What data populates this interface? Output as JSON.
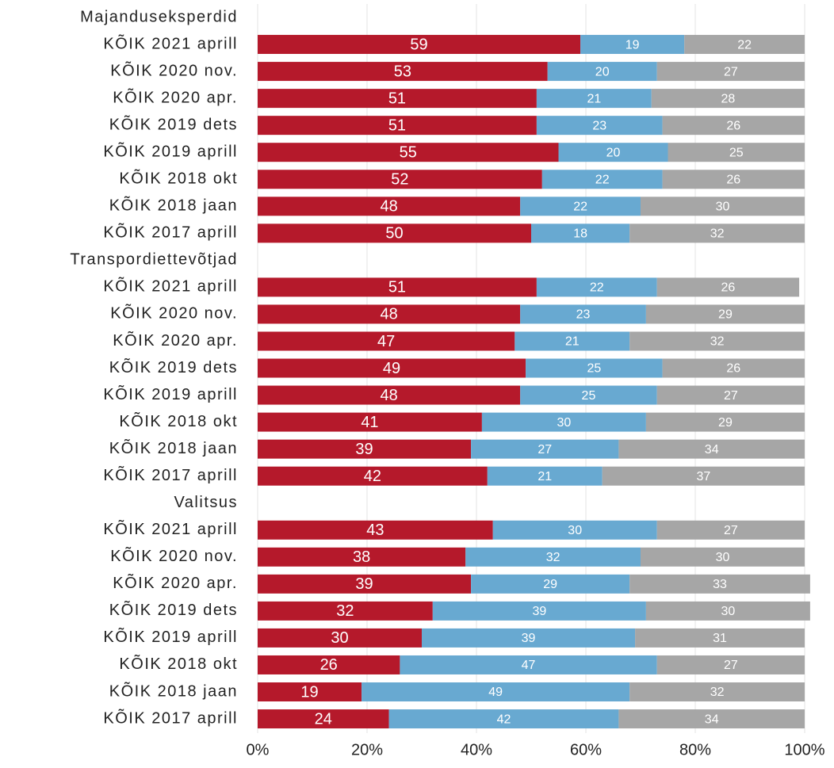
{
  "chart_data": {
    "type": "stacked-barh",
    "categories": [
      "Majanduseksperdid",
      "KÕIK 2021 aprill",
      "KÕIK 2020 nov.",
      "KÕIK 2020 apr.",
      "KÕIK 2019 dets",
      "KÕIK 2019 aprill",
      "KÕIK 2018 okt",
      "KÕIK 2018 jaan",
      "KÕIK 2017 aprill",
      "Transpordiettevõtjad",
      "KÕIK 2021 aprill",
      "KÕIK 2020 nov.",
      "KÕIK 2020 apr.",
      "KÕIK 2019 dets",
      "KÕIK 2019 aprill",
      "KÕIK 2018 okt",
      "KÕIK 2018 jaan",
      "KÕIK 2017 aprill",
      "Valitsus",
      "KÕIK 2021 aprill",
      "KÕIK 2020 nov.",
      "KÕIK 2020 apr.",
      "KÕIK 2019 dets",
      "KÕIK 2019 aprill",
      "KÕIK 2018 okt",
      "KÕIK 2018 jaan",
      "KÕIK 2017 aprill"
    ],
    "series": [
      {
        "color": "#b5192b",
        "values": [
          null,
          59,
          53,
          51,
          51,
          55,
          52,
          48,
          50,
          null,
          51,
          48,
          47,
          49,
          48,
          41,
          39,
          42,
          null,
          43,
          38,
          39,
          32,
          30,
          26,
          19,
          24
        ]
      },
      {
        "color": "#68a9d1",
        "values": [
          null,
          19,
          20,
          21,
          23,
          20,
          22,
          22,
          18,
          null,
          22,
          23,
          21,
          25,
          25,
          30,
          27,
          21,
          null,
          30,
          32,
          29,
          39,
          39,
          47,
          49,
          42
        ]
      },
      {
        "color": "#a6a6a6",
        "values": [
          null,
          22,
          27,
          28,
          26,
          25,
          26,
          30,
          32,
          null,
          26,
          29,
          32,
          26,
          27,
          29,
          34,
          37,
          null,
          27,
          30,
          33,
          30,
          31,
          27,
          32,
          34
        ]
      }
    ],
    "xlim": [
      0,
      100
    ],
    "xticks": [
      {
        "value": 0,
        "label": "0%"
      },
      {
        "value": 20,
        "label": "20%"
      },
      {
        "value": 40,
        "label": "40%"
      },
      {
        "value": 60,
        "label": "60%"
      },
      {
        "value": 80,
        "label": "80%"
      },
      {
        "value": 100,
        "label": "100%"
      }
    ],
    "grid": true
  }
}
